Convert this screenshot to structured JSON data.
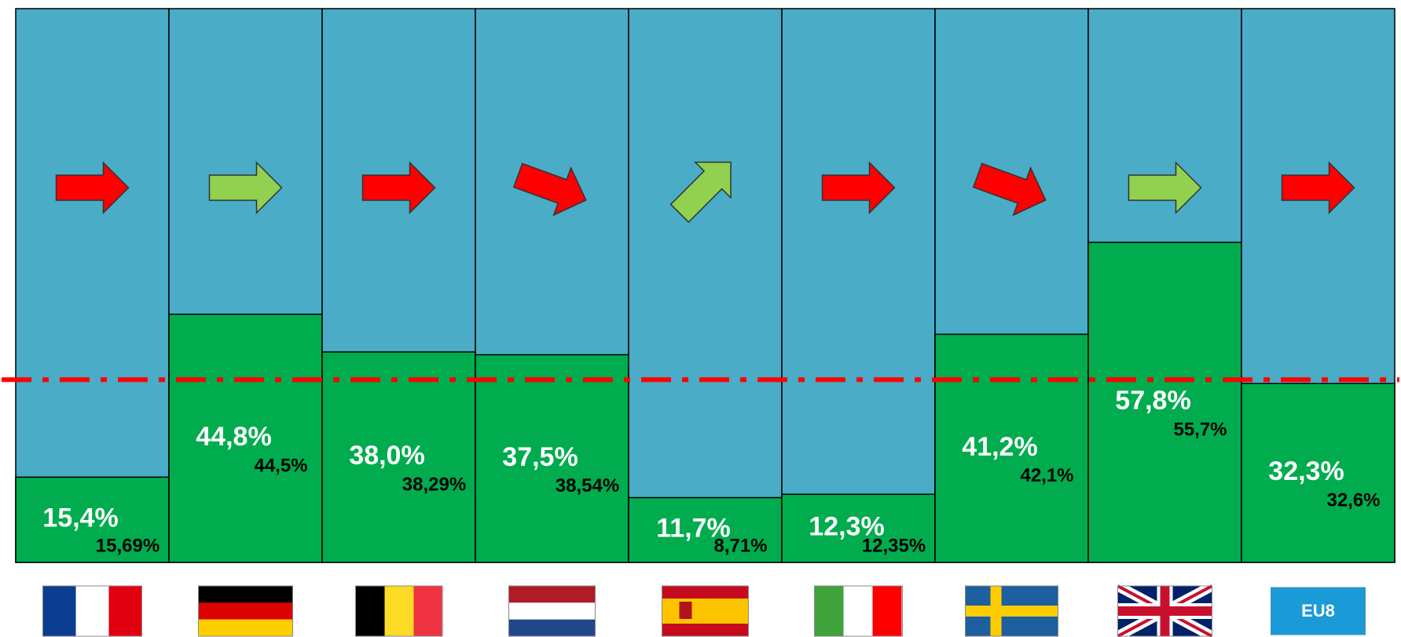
{
  "chart_data": {
    "type": "bar",
    "categories": [
      null,
      null,
      null,
      null,
      null,
      null,
      null,
      null,
      "EU8"
    ],
    "values": [
      15.4,
      44.8,
      38.0,
      37.5,
      11.7,
      12.3,
      41.2,
      57.8,
      32.3
    ],
    "value_labels": [
      "15,4%",
      "44,8%",
      "38,0%",
      "37,5%",
      "11,7%",
      "12,3%",
      "41,2%",
      "57,8%",
      "32,3%"
    ],
    "compare_values": [
      15.69,
      44.5,
      38.29,
      38.54,
      8.71,
      12.35,
      42.1,
      55.7,
      32.6
    ],
    "compare_labels": [
      "15,69%",
      "44,5%",
      "38,29%",
      "38,54%",
      "8,71%",
      "12,35%",
      "42,1%",
      "55,7%",
      "32,6%"
    ],
    "color": "#00ac4e",
    "background_color": "#4aacc6",
    "ylim": [
      0,
      100
    ],
    "reference_line": {
      "value": 33,
      "color": "#ff0000"
    },
    "arrows": [
      {
        "angle": 0,
        "color": "#ff0000"
      },
      {
        "angle": 0,
        "color": "#92d050"
      },
      {
        "angle": 0,
        "color": "#ff0000"
      },
      {
        "angle": 20,
        "color": "#ff0000"
      },
      {
        "angle": -45,
        "color": "#92d050"
      },
      {
        "angle": 0,
        "color": "#ff0000"
      },
      {
        "angle": 20,
        "color": "#ff0000"
      },
      {
        "angle": 0,
        "color": "#92d050"
      },
      {
        "angle": 0,
        "color": "#ff0000"
      }
    ]
  }
}
